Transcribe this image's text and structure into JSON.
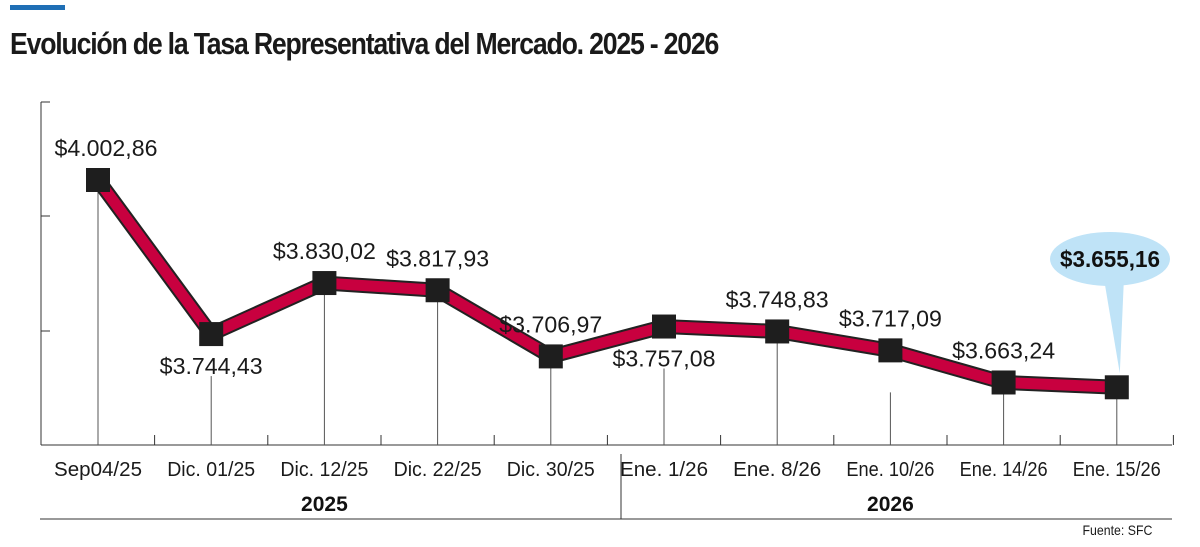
{
  "title": "Evolución de la Tasa Representativa del Mercado. 2025 - 2026",
  "source": "Fuente: SFC",
  "colors": {
    "accent": "#1f6fb5",
    "line": "#c8003f",
    "line_outline": "#222222",
    "marker": "#1e1e1e",
    "callout": "#bfe3f7",
    "axis": "#333333"
  },
  "chart_data": {
    "type": "line",
    "categories": [
      "Sep04/25",
      "Dic. 01/25",
      "Dic. 12/25",
      "Dic. 22/25",
      "Dic. 30/25",
      "Ene. 1/26",
      "Ene. 8/26",
      "Ene. 10/26",
      "Ene. 14/26",
      "Ene. 15/26"
    ],
    "values": [
      4002.86,
      3744.43,
      3830.02,
      3817.93,
      3706.97,
      3757.08,
      3748.83,
      3717.09,
      3663.24,
      3655.16
    ],
    "value_labels": [
      "$4.002,86",
      "$3.744,43",
      "$3.830,02",
      "$3.817,93",
      "$3.706,97",
      "$3.757,08",
      "$3.748,83",
      "$3.717,09",
      "$3.663,24",
      "$3.655,16"
    ],
    "label_positions": [
      "above",
      "below",
      "above",
      "above",
      "above",
      "below",
      "above",
      "above",
      "above",
      "callout"
    ],
    "groups": [
      {
        "label": "2025",
        "from": 0,
        "to": 4
      },
      {
        "label": "2026",
        "from": 5,
        "to": 9
      }
    ],
    "highlight_index": 9,
    "legend": "none",
    "grid": false
  }
}
